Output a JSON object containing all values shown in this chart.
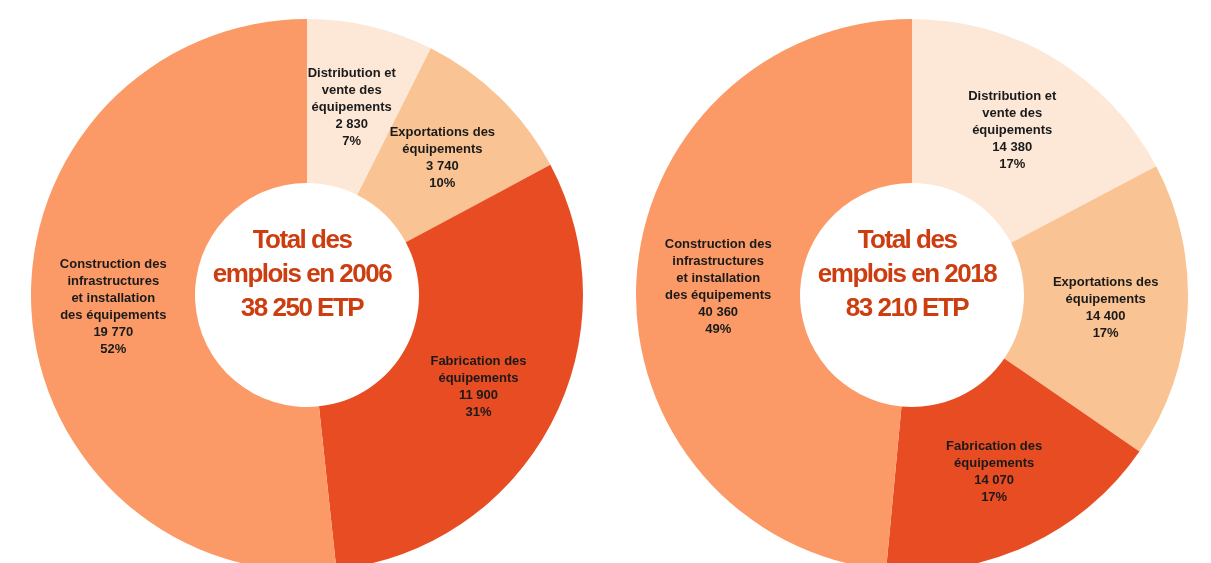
{
  "chart_data": [
    {
      "type": "donut",
      "categories": [
        "Distribution et vente des équipements",
        "Exportations des équipements",
        "Fabrication des équipements",
        "Construction des infrastructures et installation des équipements"
      ],
      "values": [
        2830,
        3740,
        11900,
        19770
      ],
      "value_labels": [
        "2 830\n7%",
        "3 740\n10%",
        "11 900\n31%",
        "19 770\n52%"
      ],
      "colors": [
        "#fde8d8",
        "#f9c393",
        "#e84c22",
        "#fb9a66"
      ],
      "annotations": [
        "Total des\nemplois en 2006\n38 250 ETP"
      ],
      "legend": false
    },
    {
      "type": "donut",
      "categories": [
        "Distribution et vente des équipements",
        "Exportations des équipements",
        "Fabrication des équipements",
        "Construction des infrastructures et installation des équipements"
      ],
      "values": [
        14380,
        14400,
        14070,
        40360
      ],
      "value_labels": [
        "14 380\n17%",
        "14 400\n17%",
        "14 070\n17%",
        "40 360\n49%"
      ],
      "colors": [
        "#fde8d8",
        "#f9c393",
        "#e84c22",
        "#fb9a66"
      ],
      "annotations": [
        "Total des\nemplois en 2018\n83 210 ETP"
      ],
      "legend": false
    }
  ]
}
